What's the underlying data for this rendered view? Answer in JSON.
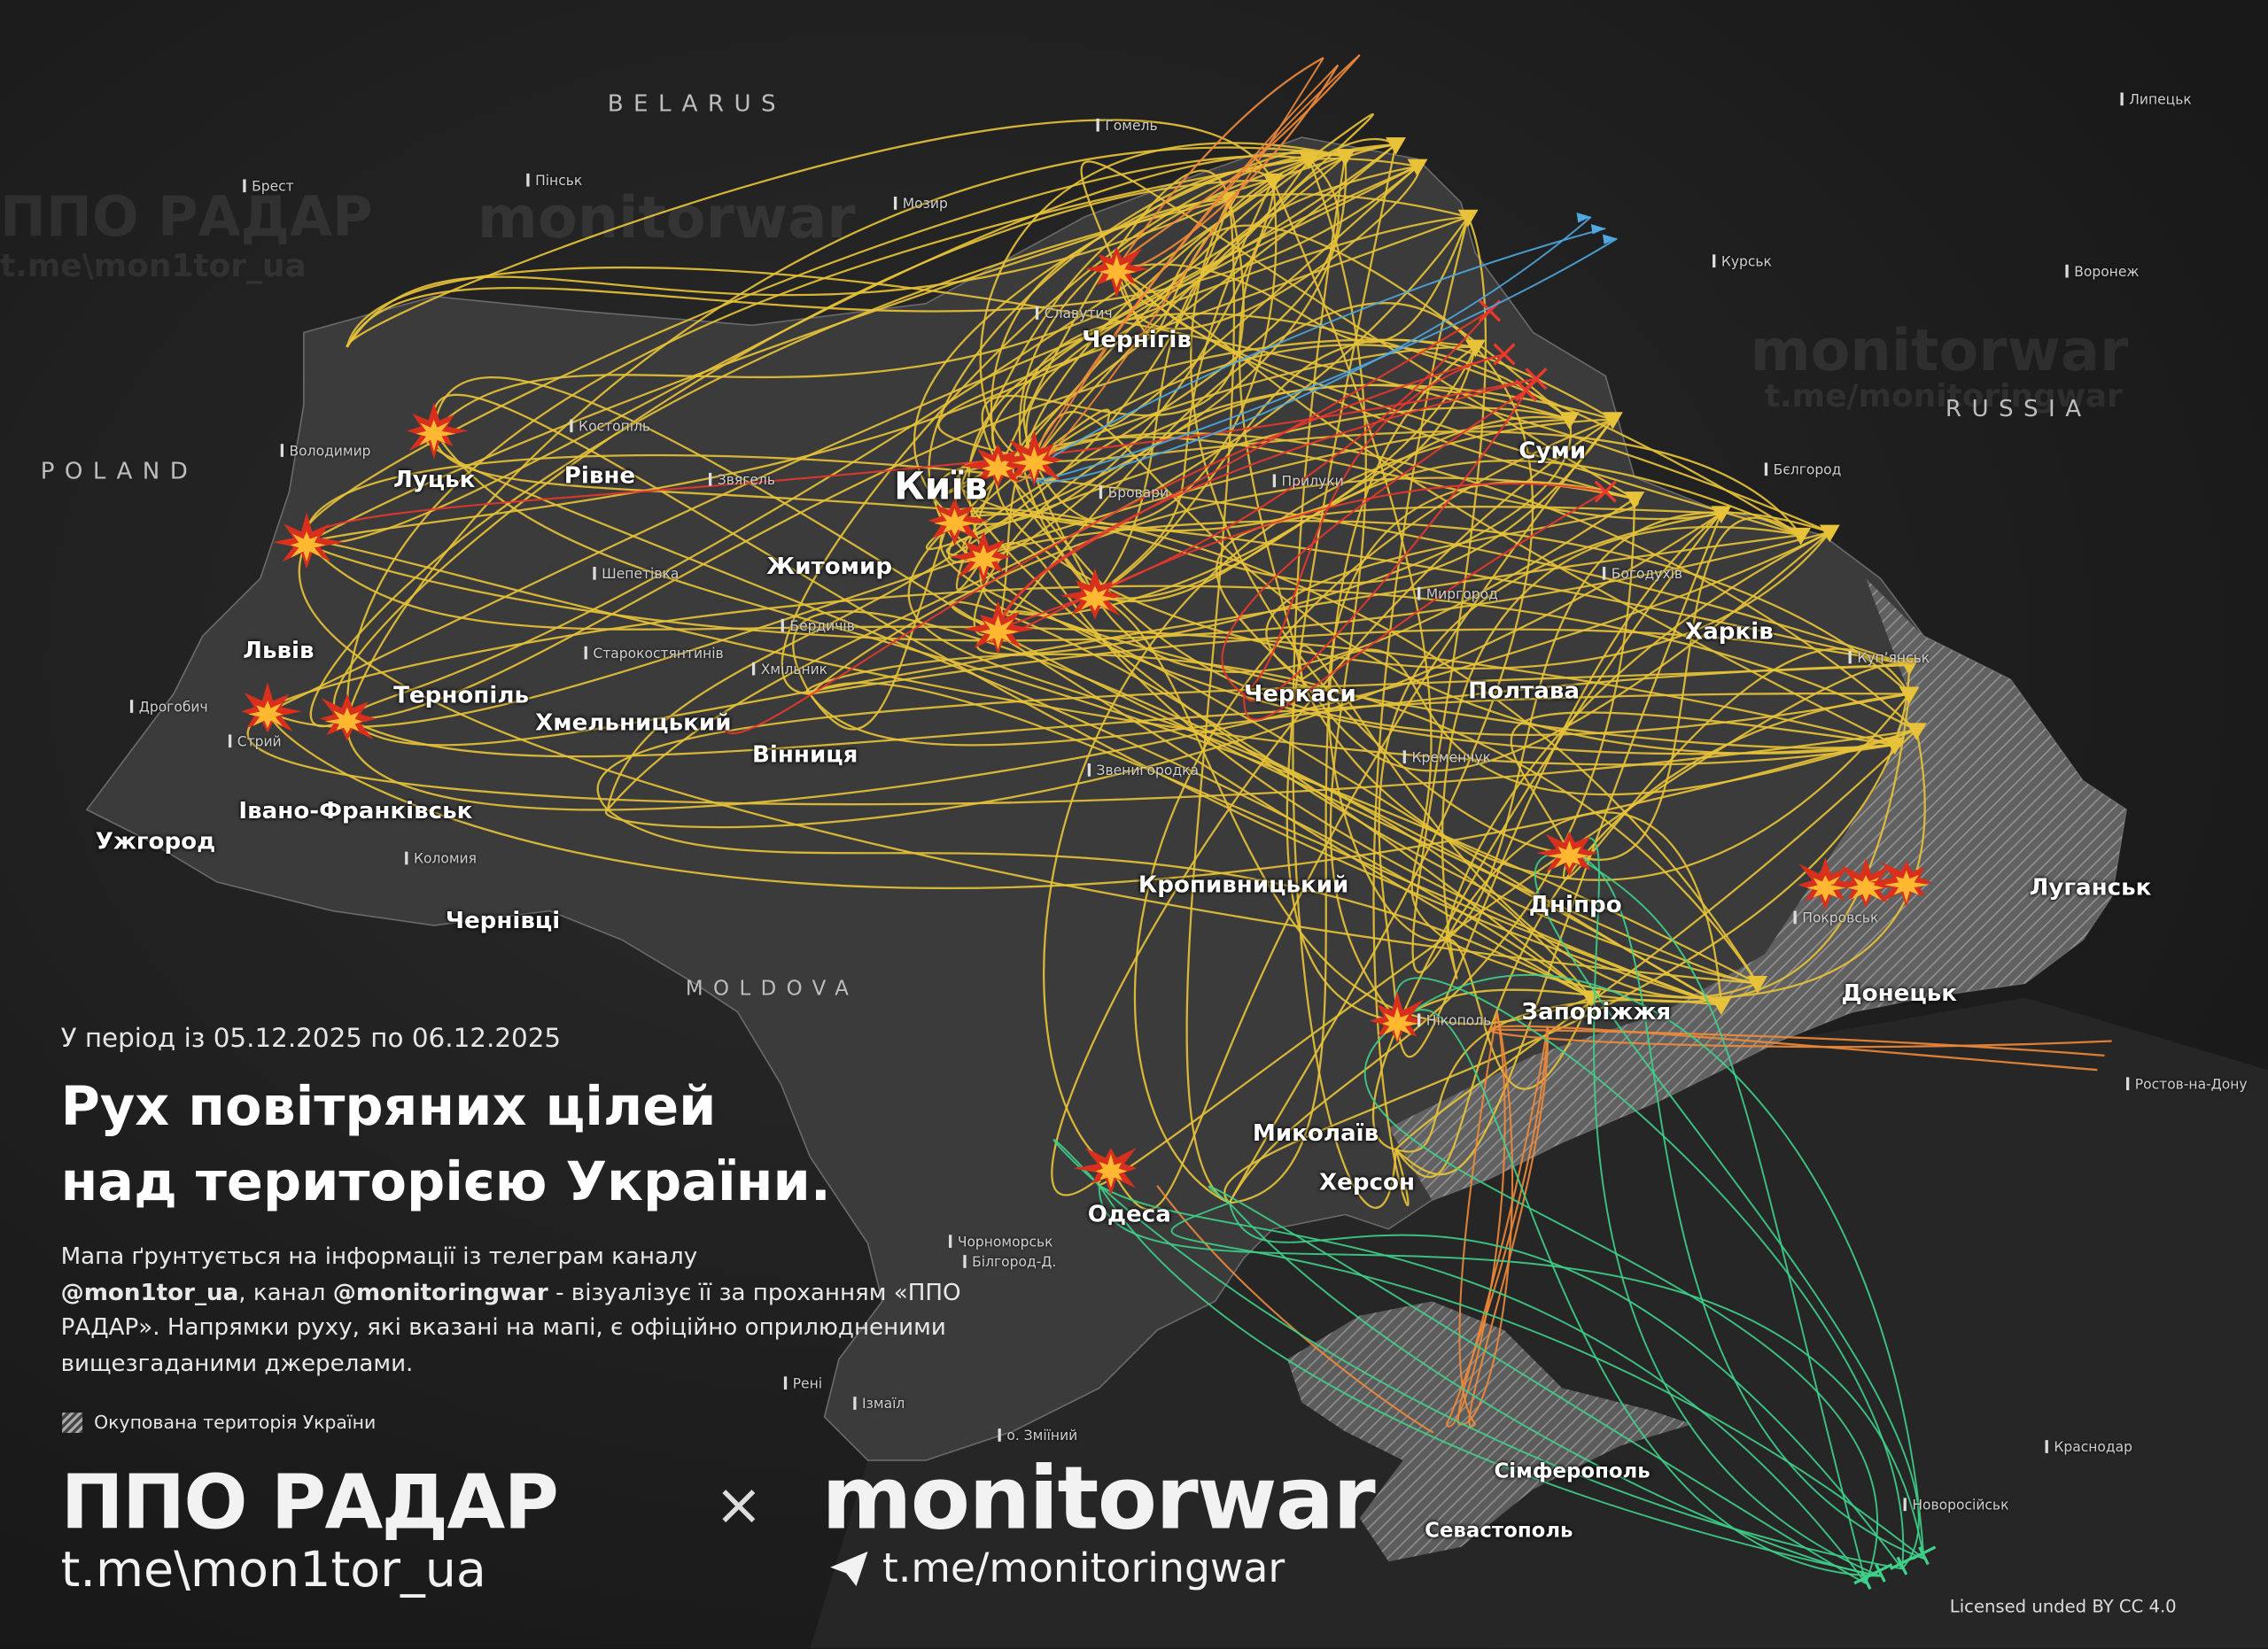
{
  "header": {
    "period": "У період із 05.12.2025 по 06.12.2025",
    "title_line1": "Рух повітряних цілей",
    "title_line2": "над територією України."
  },
  "description": {
    "p1": "Мапа ґрунтується на інформації із телеграм каналу",
    "handle1": "@mon1tor_ua",
    "p2": ", канал ",
    "handle2": "@monitoringwar",
    "p3": " - візуалізує її за проханням «ППО РАДАР». Напрямки руху, які вказані на мапі, є офіційно оприлюдненими вищезгаданими джерелами."
  },
  "legend": {
    "occupied": "Окупована територія України"
  },
  "branding": {
    "ppo": "ППО РАДАР",
    "times": "×",
    "monitorwar": "monitorwar",
    "link_ppo": "t.me\\mon1tor_ua",
    "link_mw": "t.me/monitoringwar",
    "telegram_icon": "telegram-icon"
  },
  "license": "Licensed unded BY CC 4.0",
  "countries": {
    "belarus": "BELARUS",
    "poland": "POLAND",
    "russia": "RUSSIA",
    "moldova": "MOLDOVA"
  },
  "cities": {
    "kyiv": "Київ",
    "chernihiv": "Чернігів",
    "sumy": "Суми",
    "kharkiv": "Харків",
    "poltava": "Полтава",
    "cherkasy": "Черкаси",
    "zhytomyr": "Житомир",
    "lutsk": "Луцьк",
    "rivne": "Рівне",
    "lviv": "Львів",
    "ternopil": "Тернопіль",
    "khmelnytskyi": "Хмельницький",
    "vinnytsia": "Вінниця",
    "ivano_frankivsk": "Івано-Франківськ",
    "uzhhorod": "Ужгород",
    "chernivtsi": "Чернівці",
    "kropyvnytskyi": "Кропивницький",
    "dnipro": "Дніпро",
    "zaporizhzhia": "Запоріжжя",
    "donetsk": "Донецьк",
    "luhansk": "Луганськ",
    "mykolaiv": "Миколаїв",
    "kherson": "Херсон",
    "odesa": "Одеса",
    "simferopol": "Сімферополь",
    "sevastopol": "Севастополь"
  },
  "towns": [
    "Гомель",
    "Пінськ",
    "Брест",
    "Мозир",
    "Курськ",
    "Воронеж",
    "Липецьк",
    "Бєлгород",
    "Ростов-на-Дону",
    "Краснодар",
    "Новоросійськ",
    "Ізмаїл",
    "Рені",
    "о. Зміїний",
    "Костопіль",
    "Володимир",
    "Дрогобич",
    "Стрий",
    "Шепетівка",
    "Старокостянтинів",
    "Хмільник",
    "Бердичів",
    "Бровари",
    "Прилуки",
    "Миргород",
    "Кременчук",
    "Покровськ",
    "Купʼянськ",
    "Звягель",
    "Коломия",
    "Чорноморськ",
    "Білгород-Д.",
    "Нікополь",
    "Звенигородка",
    "Славутич",
    "Богодухів"
  ],
  "watermarks": {
    "a": "ППО РАДАР",
    "b": "monitorwar",
    "c": "t.me\\mon1tor_ua",
    "d": "t.me/monitoringwar"
  },
  "colors": {
    "drones": "#e8c33a",
    "ballistic": "#e8392c",
    "cruise": "#4fa8e0",
    "kalibr_kh": "#f08a3a",
    "sea": "#3fd08a",
    "explosion": "#ff7a1a",
    "land": "#3a3a3a",
    "occupied": "#8a8a8a"
  }
}
